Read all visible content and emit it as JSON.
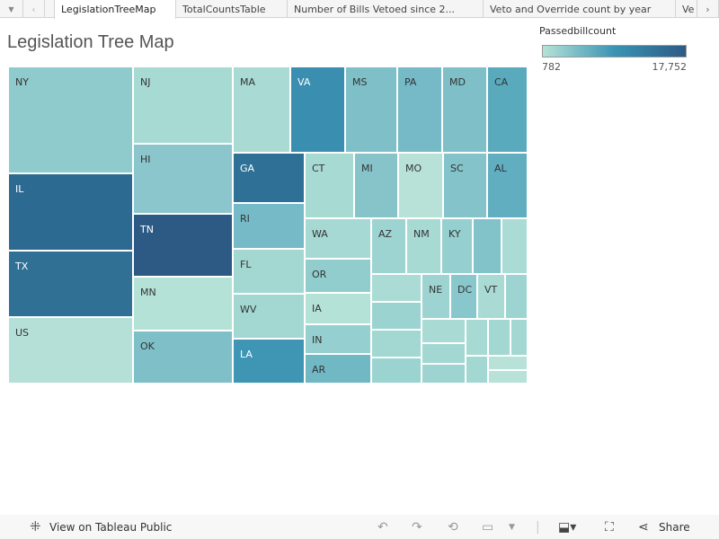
{
  "tabs": {
    "menu_icon": "dropdown-triangle-icon",
    "prev_icon": "chevron-left-icon",
    "next_icon": "chevron-right-icon",
    "items": [
      {
        "label": "LegislationTreeMap",
        "active": true
      },
      {
        "label": "TotalCountsTable"
      },
      {
        "label": "Number of Bills Vetoed since 2..."
      },
      {
        "label": "Veto and Override count by year"
      },
      {
        "label": "Ve"
      }
    ]
  },
  "title": "Legislation Tree Map",
  "legend": {
    "title": "Passedbillcount",
    "min": "782",
    "max": "17,752",
    "colors": [
      "#b5e2d7",
      "#3a94b4",
      "#2c5a85"
    ]
  },
  "treemap": [
    {
      "label": "NY",
      "color": "#8fcbcc"
    },
    {
      "label": "IL",
      "color": "#2d6a91"
    },
    {
      "label": "TX",
      "color": "#307095"
    },
    {
      "label": "US",
      "color": "#b5e0d8"
    },
    {
      "label": "NJ",
      "color": "#a8dad4"
    },
    {
      "label": "HI",
      "color": "#8bc6cc"
    },
    {
      "label": "TN",
      "color": "#2c5a85"
    },
    {
      "label": "MN",
      "color": "#b5e2d7"
    },
    {
      "label": "OK",
      "color": "#7fbfc8"
    },
    {
      "label": "MA",
      "color": "#a9dbd4"
    },
    {
      "label": "VA",
      "color": "#3a8fb0"
    },
    {
      "label": "GA",
      "color": "#2f7096"
    },
    {
      "label": "RI",
      "color": "#75bac6"
    },
    {
      "label": "FL",
      "color": "#a3d8d2"
    },
    {
      "label": "WV",
      "color": "#a3d8d2"
    },
    {
      "label": "LA",
      "color": "#3e96b4"
    },
    {
      "label": "MS",
      "color": "#7fbfc8"
    },
    {
      "label": "PA",
      "color": "#75bac6"
    },
    {
      "label": "MD",
      "color": "#7fbfc8"
    },
    {
      "label": "CA",
      "color": "#5aaabd"
    },
    {
      "label": "CT",
      "color": "#a8dad4"
    },
    {
      "label": "MI",
      "color": "#86c4ca"
    },
    {
      "label": "MO",
      "color": "#b8e2d8"
    },
    {
      "label": "SC",
      "color": "#84c3ca"
    },
    {
      "label": "AL",
      "color": "#60aec0"
    },
    {
      "label": "WA",
      "color": "#a6d9d3"
    },
    {
      "label": "OR",
      "color": "#92cdcd"
    },
    {
      "label": "IA",
      "color": "#b5e2d7"
    },
    {
      "label": "IN",
      "color": "#96cfcf"
    },
    {
      "label": "AR",
      "color": "#70b8c4"
    },
    {
      "label": "AZ",
      "color": "#9dd4d1"
    },
    {
      "label": "NM",
      "color": "#a8dad4"
    },
    {
      "label": "KY",
      "color": "#96cfcf"
    },
    {
      "label": "",
      "color": "#82c3ca"
    },
    {
      "label": "",
      "color": "#aadbd5"
    },
    {
      "label": "",
      "color": "#aadbd5"
    },
    {
      "label": "",
      "color": "#9bd3d1"
    },
    {
      "label": "",
      "color": "#a3d8d2"
    },
    {
      "label": "",
      "color": "#9bd3d1"
    },
    {
      "label": "NE",
      "color": "#9dd4d1"
    },
    {
      "label": "DC",
      "color": "#88c7cc"
    },
    {
      "label": "VT",
      "color": "#a9dbd4"
    },
    {
      "label": "",
      "color": "#9dd4d1"
    },
    {
      "label": "",
      "color": "#a9dbd4"
    },
    {
      "label": "",
      "color": "#a3d8d2"
    },
    {
      "label": "",
      "color": "#9dd4d1"
    },
    {
      "label": "",
      "color": "#a8dad4"
    },
    {
      "label": "",
      "color": "#a3d8d2"
    },
    {
      "label": "",
      "color": "#a3d8d2"
    },
    {
      "label": "",
      "color": "#a3d8d2"
    },
    {
      "label": "",
      "color": "#b8e2d8"
    },
    {
      "label": "",
      "color": "#b8e2d8"
    }
  ],
  "footer": {
    "view_label": "View on Tableau Public",
    "share_label": "Share",
    "icons": [
      "tableau-logo-icon",
      "undo-icon",
      "redo-icon",
      "revert-icon",
      "refresh-icon",
      "download-icon",
      "fullscreen-icon",
      "share-icon"
    ]
  }
}
